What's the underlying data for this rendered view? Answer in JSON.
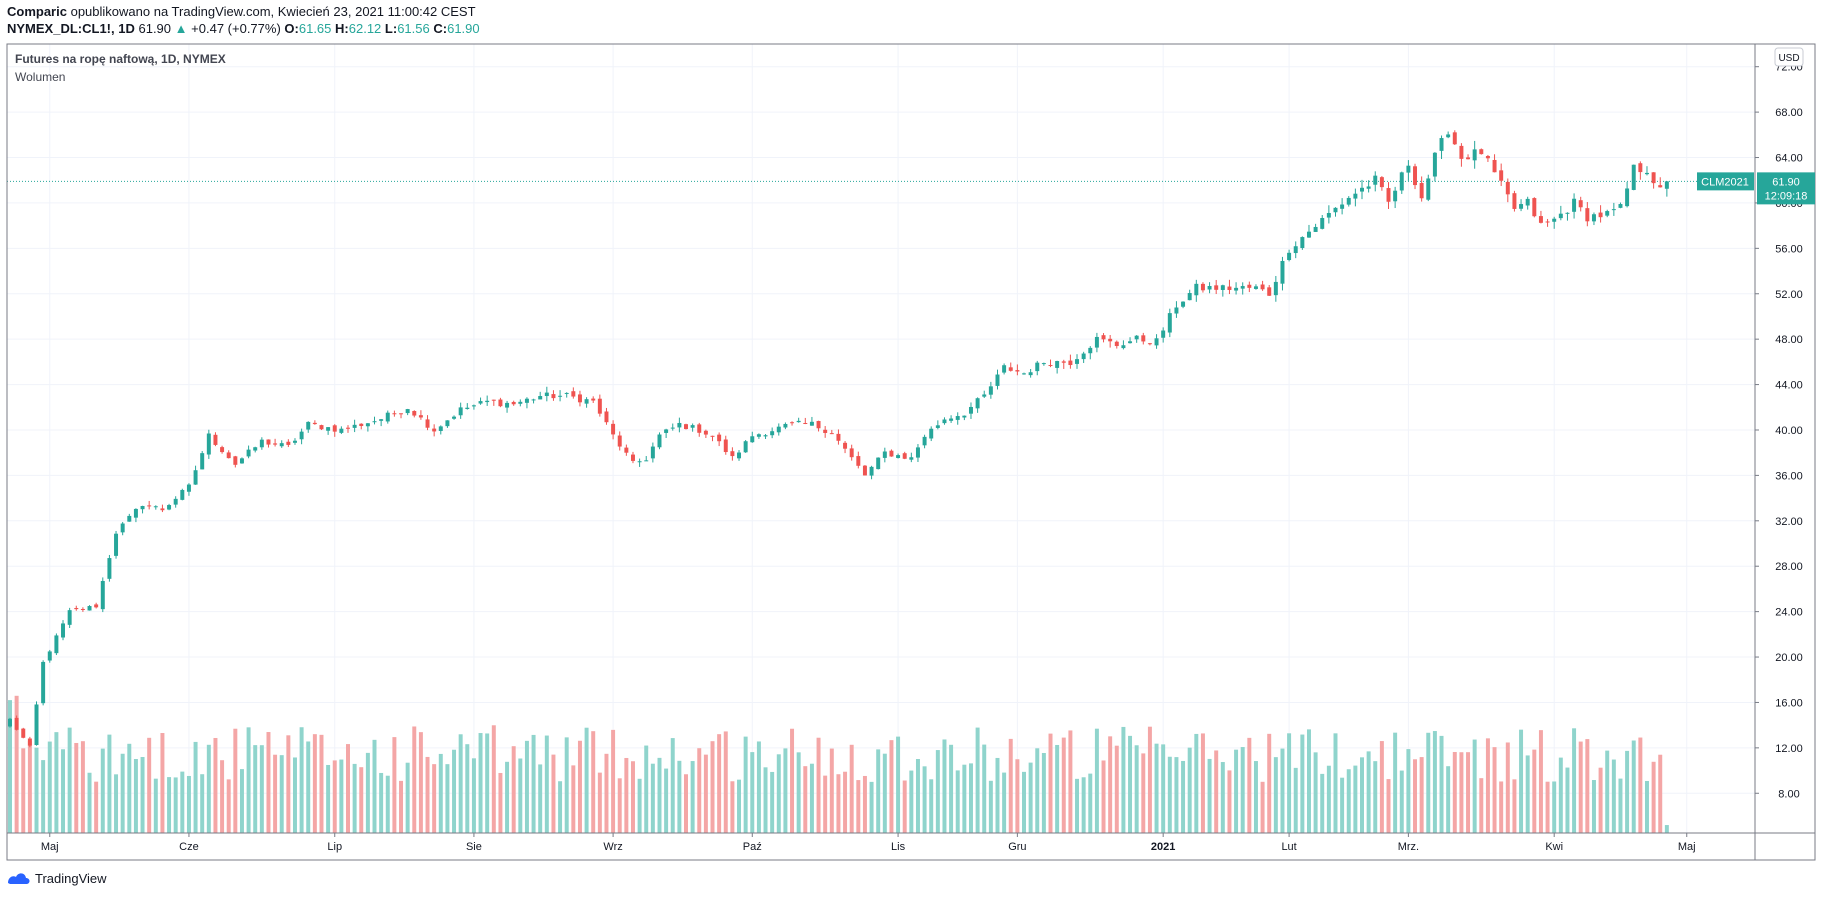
{
  "header": {
    "author": "Comparic",
    "published_text": "opublikowano na TradingView.com, Kwiecień 23, 2021 11:00:42 CEST",
    "symbol": "NYMEX_DL:CL1!, 1D",
    "last": "61.90",
    "change": "+0.47 (+0.77%)",
    "open_label": "O:",
    "open": "61.65",
    "high_label": "H:",
    "high": "62.12",
    "low_label": "L:",
    "low": "61.56",
    "close_label": "C:",
    "close": "61.90"
  },
  "legend": {
    "title": "Futures na ropę naftową, 1D, NYMEX",
    "volume_label": "Wolumen"
  },
  "price_tag": {
    "contract": "CLM2021",
    "price": "61.90",
    "countdown": "12:09:18"
  },
  "footer": {
    "brand": "TradingView"
  },
  "chart_data": {
    "type": "candlestick",
    "currency": "USD",
    "ylim": [
      4.5,
      74
    ],
    "y_ticks": [
      8,
      12,
      16,
      20,
      24,
      28,
      32,
      36,
      40,
      44,
      48,
      52,
      56,
      60,
      64,
      68,
      72
    ],
    "y_tick_labels": [
      "8.00",
      "12.00",
      "16.00",
      "20.00",
      "24.00",
      "28.00",
      "32.00",
      "36.00",
      "40.00",
      "44.00",
      "48.00",
      "52.00",
      "56.00",
      "60.00",
      "64.00",
      "68.00",
      "72.00"
    ],
    "x_ticks": [
      {
        "label": "Maj",
        "day": 6
      },
      {
        "label": "Cze",
        "day": 27
      },
      {
        "label": "Lip",
        "day": 49
      },
      {
        "label": "Sie",
        "day": 70
      },
      {
        "label": "Wrz",
        "day": 91
      },
      {
        "label": "Paź",
        "day": 112
      },
      {
        "label": "Lis",
        "day": 134
      },
      {
        "label": "Gru",
        "day": 152
      },
      {
        "label": "2021",
        "day": 174,
        "bold": true
      },
      {
        "label": "Lut",
        "day": 193
      },
      {
        "label": "Mrz.",
        "day": 211
      },
      {
        "label": "Kwi",
        "day": 233
      },
      {
        "label": "Maj",
        "day": 253
      }
    ],
    "n_days": 256,
    "close_anchors": [
      [
        0,
        14.5
      ],
      [
        3,
        12.0
      ],
      [
        5,
        19.5
      ],
      [
        9,
        24.0
      ],
      [
        13,
        24.5
      ],
      [
        16,
        31.0
      ],
      [
        20,
        33.5
      ],
      [
        23,
        33.0
      ],
      [
        27,
        35.0
      ],
      [
        30,
        39.5
      ],
      [
        34,
        37.0
      ],
      [
        38,
        39.0
      ],
      [
        42,
        38.5
      ],
      [
        45,
        40.5
      ],
      [
        50,
        40.0
      ],
      [
        56,
        41.0
      ],
      [
        60,
        42.0
      ],
      [
        64,
        40.0
      ],
      [
        68,
        41.8
      ],
      [
        72,
        42.5
      ],
      [
        76,
        42.3
      ],
      [
        80,
        43.0
      ],
      [
        84,
        43.0
      ],
      [
        88,
        42.5
      ],
      [
        91,
        39.5
      ],
      [
        94,
        37.0
      ],
      [
        96,
        37.5
      ],
      [
        98,
        39.5
      ],
      [
        101,
        40.5
      ],
      [
        104,
        40.0
      ],
      [
        106,
        39.5
      ],
      [
        109,
        37.5
      ],
      [
        112,
        39.5
      ],
      [
        115,
        40.0
      ],
      [
        118,
        40.5
      ],
      [
        121,
        40.5
      ],
      [
        124,
        39.8
      ],
      [
        127,
        37.5
      ],
      [
        129,
        36.0
      ],
      [
        132,
        38.0
      ],
      [
        136,
        37.5
      ],
      [
        138,
        39.5
      ],
      [
        141,
        41.0
      ],
      [
        144,
        41.5
      ],
      [
        147,
        43.0
      ],
      [
        150,
        45.5
      ],
      [
        153,
        45.0
      ],
      [
        156,
        46.0
      ],
      [
        160,
        46.0
      ],
      [
        164,
        48.0
      ],
      [
        167,
        47.5
      ],
      [
        170,
        48.0
      ],
      [
        173,
        47.8
      ],
      [
        176,
        51.0
      ],
      [
        179,
        52.5
      ],
      [
        182,
        52.5
      ],
      [
        185,
        52.5
      ],
      [
        188,
        52.5
      ],
      [
        190,
        52.0
      ],
      [
        193,
        56.0
      ],
      [
        196,
        57.5
      ],
      [
        199,
        59.0
      ],
      [
        202,
        60.5
      ],
      [
        206,
        62.0
      ],
      [
        208,
        60.0
      ],
      [
        211,
        63.5
      ],
      [
        213,
        60.5
      ],
      [
        215,
        64.0
      ],
      [
        217,
        66.5
      ],
      [
        219,
        64.0
      ],
      [
        222,
        64.5
      ],
      [
        225,
        61.5
      ],
      [
        227,
        59.5
      ],
      [
        229,
        60.0
      ],
      [
        231,
        58.0
      ],
      [
        233,
        58.5
      ],
      [
        236,
        60.0
      ],
      [
        238,
        58.8
      ],
      [
        241,
        59.0
      ],
      [
        243,
        59.5
      ],
      [
        245,
        63.0
      ],
      [
        247,
        63.0
      ],
      [
        249,
        61.0
      ],
      [
        250,
        61.9
      ]
    ],
    "volume_scale_note": "same price axis units",
    "current_price": 61.9,
    "up_color": "#26a69a",
    "down_color": "#ef5350",
    "volume_up_color": "#8fd4cc",
    "volume_down_color": "#f4a6a6"
  }
}
